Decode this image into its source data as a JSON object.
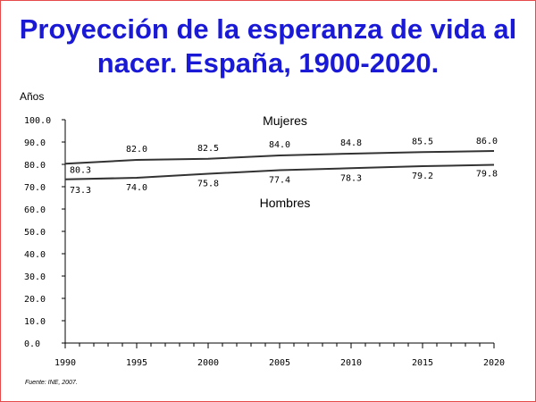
{
  "chart_data": {
    "type": "line",
    "title": "Proyección de la esperanza de vida al nacer. España, 1900-2020.",
    "ylabel": "Años",
    "xlabel": "",
    "source": "Fuente: INE, 2007.",
    "x": [
      1990,
      1995,
      2000,
      2005,
      2010,
      2015,
      2020
    ],
    "xlim": [
      1990,
      2020
    ],
    "ylim": [
      0,
      100
    ],
    "yticks": [
      "0.0",
      "10.0",
      "20.0",
      "30.0",
      "40.0",
      "50.0",
      "60.0",
      "70.0",
      "80.0",
      "90.0",
      "100.0"
    ],
    "xticks": [
      "1990",
      "1995",
      "2000",
      "2005",
      "2010",
      "2015",
      "2020"
    ],
    "grid": false,
    "series": [
      {
        "name": "Mujeres",
        "x": [
          1990,
          1995,
          2000,
          2005,
          2010,
          2015,
          2020
        ],
        "values": [
          80.3,
          82.0,
          82.5,
          84.0,
          84.8,
          85.5,
          86.0
        ],
        "labels": [
          "80.3",
          "82.0",
          "82.5",
          "84.0",
          "84.8",
          "85.5",
          "86.0"
        ]
      },
      {
        "name": "Hombres",
        "x": [
          1990,
          1995,
          2000,
          2005,
          2010,
          2015,
          2020
        ],
        "values": [
          73.3,
          74.0,
          75.8,
          77.4,
          78.3,
          79.2,
          79.8
        ],
        "labels": [
          "73.3",
          "74.0",
          "75.8",
          "77.4",
          "78.3",
          "79.2",
          "79.8"
        ]
      }
    ],
    "line_color": "#333333"
  }
}
